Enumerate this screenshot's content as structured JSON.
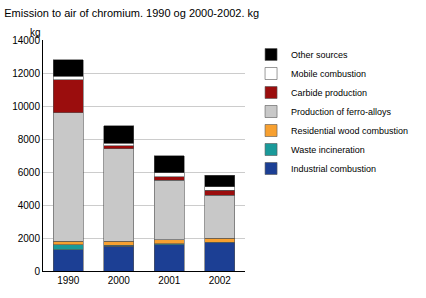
{
  "chart_data": {
    "type": "bar",
    "stacked": true,
    "title": "Emission to air of chromium. 1990 og 2000-2002. kg",
    "ylabel": "kg",
    "categories": [
      "1990",
      "2000",
      "2001",
      "2002"
    ],
    "series": [
      {
        "name": "Industrial combustion",
        "color": "#1c3f94",
        "values": [
          1300,
          1500,
          1600,
          1700
        ]
      },
      {
        "name": "Waste incineration",
        "color": "#1a9a9a",
        "values": [
          300,
          50,
          50,
          50
        ]
      },
      {
        "name": "Residential wood combustion",
        "color": "#f7a030",
        "values": [
          200,
          250,
          250,
          250
        ]
      },
      {
        "name": "Production of ferro-alloys",
        "color": "#c8c8c8",
        "values": [
          7800,
          5600,
          3600,
          2600
        ]
      },
      {
        "name": "Carbide production",
        "color": "#9b0d0d",
        "values": [
          2000,
          200,
          200,
          300
        ]
      },
      {
        "name": "Mobile combustion",
        "color": "#ffffff",
        "values": [
          200,
          150,
          250,
          200
        ]
      },
      {
        "name": "Other sources",
        "color": "#000000",
        "values": [
          1000,
          1050,
          1050,
          700
        ]
      }
    ],
    "ylim": [
      0,
      14000
    ],
    "yticks": [
      0,
      2000,
      4000,
      6000,
      8000,
      10000,
      12000,
      14000
    ],
    "grid": true,
    "legend": "right"
  }
}
